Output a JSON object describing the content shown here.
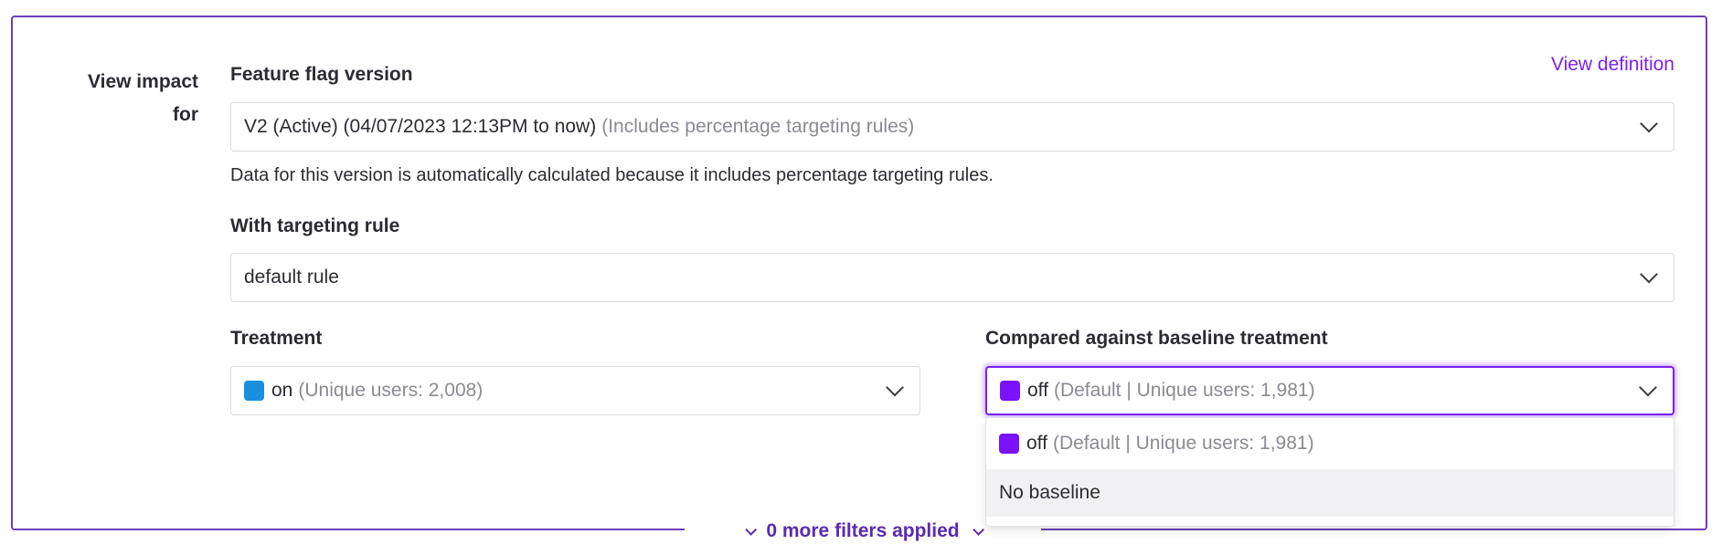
{
  "view_impact_label_1": "View impact",
  "view_impact_label_2": "for",
  "view_definition_link": "View definition",
  "feature_flag_version": {
    "label": "Feature flag version",
    "value": "V2 (Active) (04/07/2023 12:13PM to now)",
    "value_note": "(Includes percentage targeting rules)",
    "help_text": "Data for this version is automatically calculated because it includes percentage targeting rules."
  },
  "targeting_rule": {
    "label": "With targeting rule",
    "value": "default rule"
  },
  "treatment": {
    "label": "Treatment",
    "value": "on",
    "note": "(Unique users: 2,008)",
    "color": "#1a8fe0"
  },
  "baseline": {
    "label": "Compared against baseline treatment",
    "value": "off",
    "note": "(Default | Unique users: 1,981)",
    "color": "#7a12ff",
    "options": [
      {
        "value": "off",
        "note": "(Default | Unique users: 1,981)"
      },
      {
        "value": "No baseline"
      }
    ]
  },
  "footer": {
    "filters_label": "0 more filters applied"
  }
}
